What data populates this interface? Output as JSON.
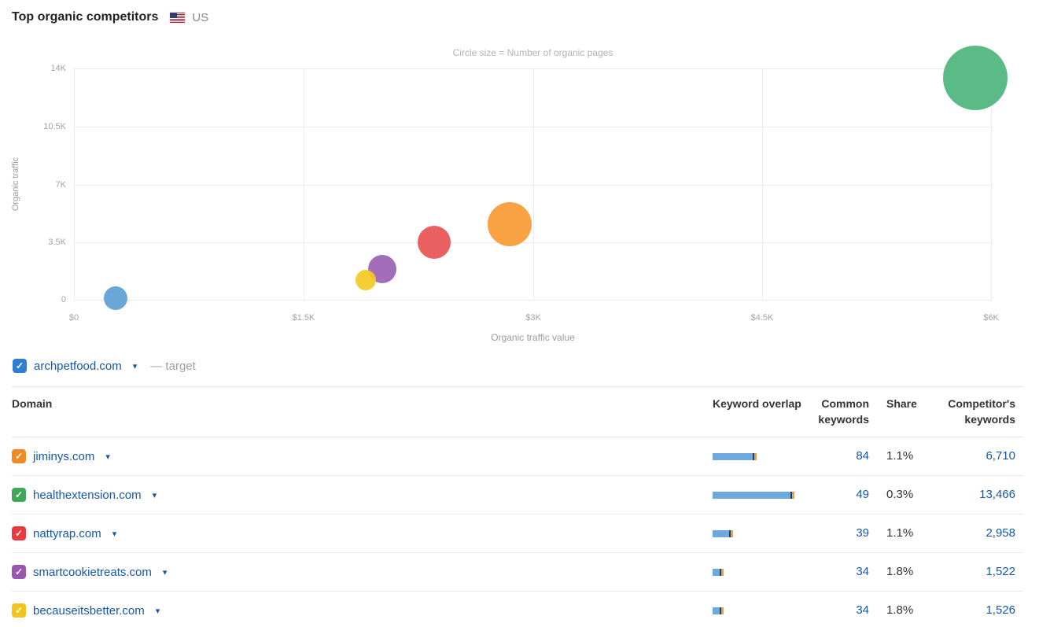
{
  "header": {
    "title": "Top organic competitors",
    "region": "US",
    "flag": "us-flag"
  },
  "chart_data": {
    "type": "scatter",
    "note": "Circle size = Number of organic pages",
    "xlabel": "Organic traffic value",
    "ylabel": "Organic traffic",
    "xlim": [
      0,
      6000
    ],
    "ylim": [
      0,
      14000
    ],
    "grid": true,
    "x_ticks": [
      {
        "value": 0,
        "label": "$0"
      },
      {
        "value": 1500,
        "label": "$1.5K"
      },
      {
        "value": 3000,
        "label": "$3K"
      },
      {
        "value": 4500,
        "label": "$4.5K"
      },
      {
        "value": 6000,
        "label": "$6K"
      }
    ],
    "y_ticks": [
      {
        "value": 0,
        "label": "0"
      },
      {
        "value": 3500,
        "label": "3.5K"
      },
      {
        "value": 7000,
        "label": "7K"
      },
      {
        "value": 10500,
        "label": "10.5K"
      },
      {
        "value": 14000,
        "label": "14K"
      }
    ],
    "points": [
      {
        "domain": "archpetfood.com",
        "traffic_value": 270,
        "organic_traffic": 150,
        "radius": 15,
        "color": "#5d9fd3"
      },
      {
        "domain": "smartcookietreats.com",
        "traffic_value": 2015,
        "organic_traffic": 1900,
        "radius": 18,
        "color": "#9a62b3"
      },
      {
        "domain": "becauseitsbetter.com",
        "traffic_value": 1910,
        "organic_traffic": 1250,
        "radius": 13,
        "color": "#f4ca24"
      },
      {
        "domain": "nattyrap.com",
        "traffic_value": 2355,
        "organic_traffic": 3500,
        "radius": 21,
        "color": "#e65252"
      },
      {
        "domain": "jiminys.com",
        "traffic_value": 2850,
        "organic_traffic": 4600,
        "radius": 28,
        "color": "#f79a33"
      },
      {
        "domain": "healthextension.com",
        "traffic_value": 5890,
        "organic_traffic": 13450,
        "radius": 41,
        "color": "#4db57d"
      }
    ]
  },
  "legend": {
    "domain": "archpetfood.com",
    "target_label": "— target",
    "checkbox_color": "#2f7fd1",
    "check_glyph": "✓"
  },
  "table": {
    "columns": [
      "Domain",
      "Keyword overlap",
      "Common keywords",
      "Share",
      "Competitor's keywords"
    ],
    "bar_colors": {
      "blue": "#6fa8dd",
      "dark": "#2c3e50",
      "orange": "#f0a136"
    },
    "rows": [
      {
        "domain": "jiminys.com",
        "checkbox_color": "#f18a21",
        "bar": [
          51,
          2,
          3
        ],
        "common_keywords": "84",
        "share": "1.1%",
        "competitor_keywords": "6,710"
      },
      {
        "domain": "healthextension.com",
        "checkbox_color": "#3fa75a",
        "bar": [
          99,
          2,
          3
        ],
        "common_keywords": "49",
        "share": "0.3%",
        "competitor_keywords": "13,466"
      },
      {
        "domain": "nattyrap.com",
        "checkbox_color": "#e83a3f",
        "bar": [
          21,
          2,
          3
        ],
        "common_keywords": "39",
        "share": "1.1%",
        "competitor_keywords": "2,958"
      },
      {
        "domain": "smartcookietreats.com",
        "checkbox_color": "#9a55ad",
        "bar": [
          9,
          2,
          3
        ],
        "common_keywords": "34",
        "share": "1.8%",
        "competitor_keywords": "1,522"
      },
      {
        "domain": "becauseitsbetter.com",
        "checkbox_color": "#f2c41d",
        "bar": [
          9,
          2,
          3
        ],
        "common_keywords": "34",
        "share": "1.8%",
        "competitor_keywords": "1,526"
      }
    ],
    "check_glyph": "✓",
    "caret_glyph": "▾"
  }
}
